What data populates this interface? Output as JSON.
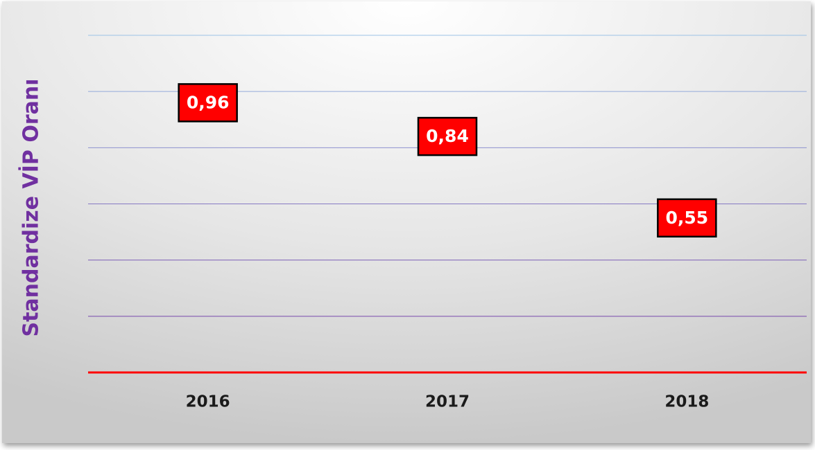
{
  "chart_data": {
    "type": "line",
    "y_label": "Standardize VİP Oranı",
    "categories": [
      "2016",
      "2017",
      "2018"
    ],
    "series": [
      {
        "name": "Standardize VİP Oranı",
        "color": "#ff0000",
        "values": [
          0.96,
          0.84,
          0.55
        ],
        "value_labels": [
          "0,96",
          "0,84",
          "0,55"
        ]
      }
    ],
    "ylim": [
      0,
      1.2
    ],
    "yticks": [
      0,
      0.2,
      0.4,
      0.6,
      0.8,
      1,
      1.2
    ],
    "grid": true,
    "axis_color": "#ff0000",
    "y_label_color": "#7030a0"
  }
}
